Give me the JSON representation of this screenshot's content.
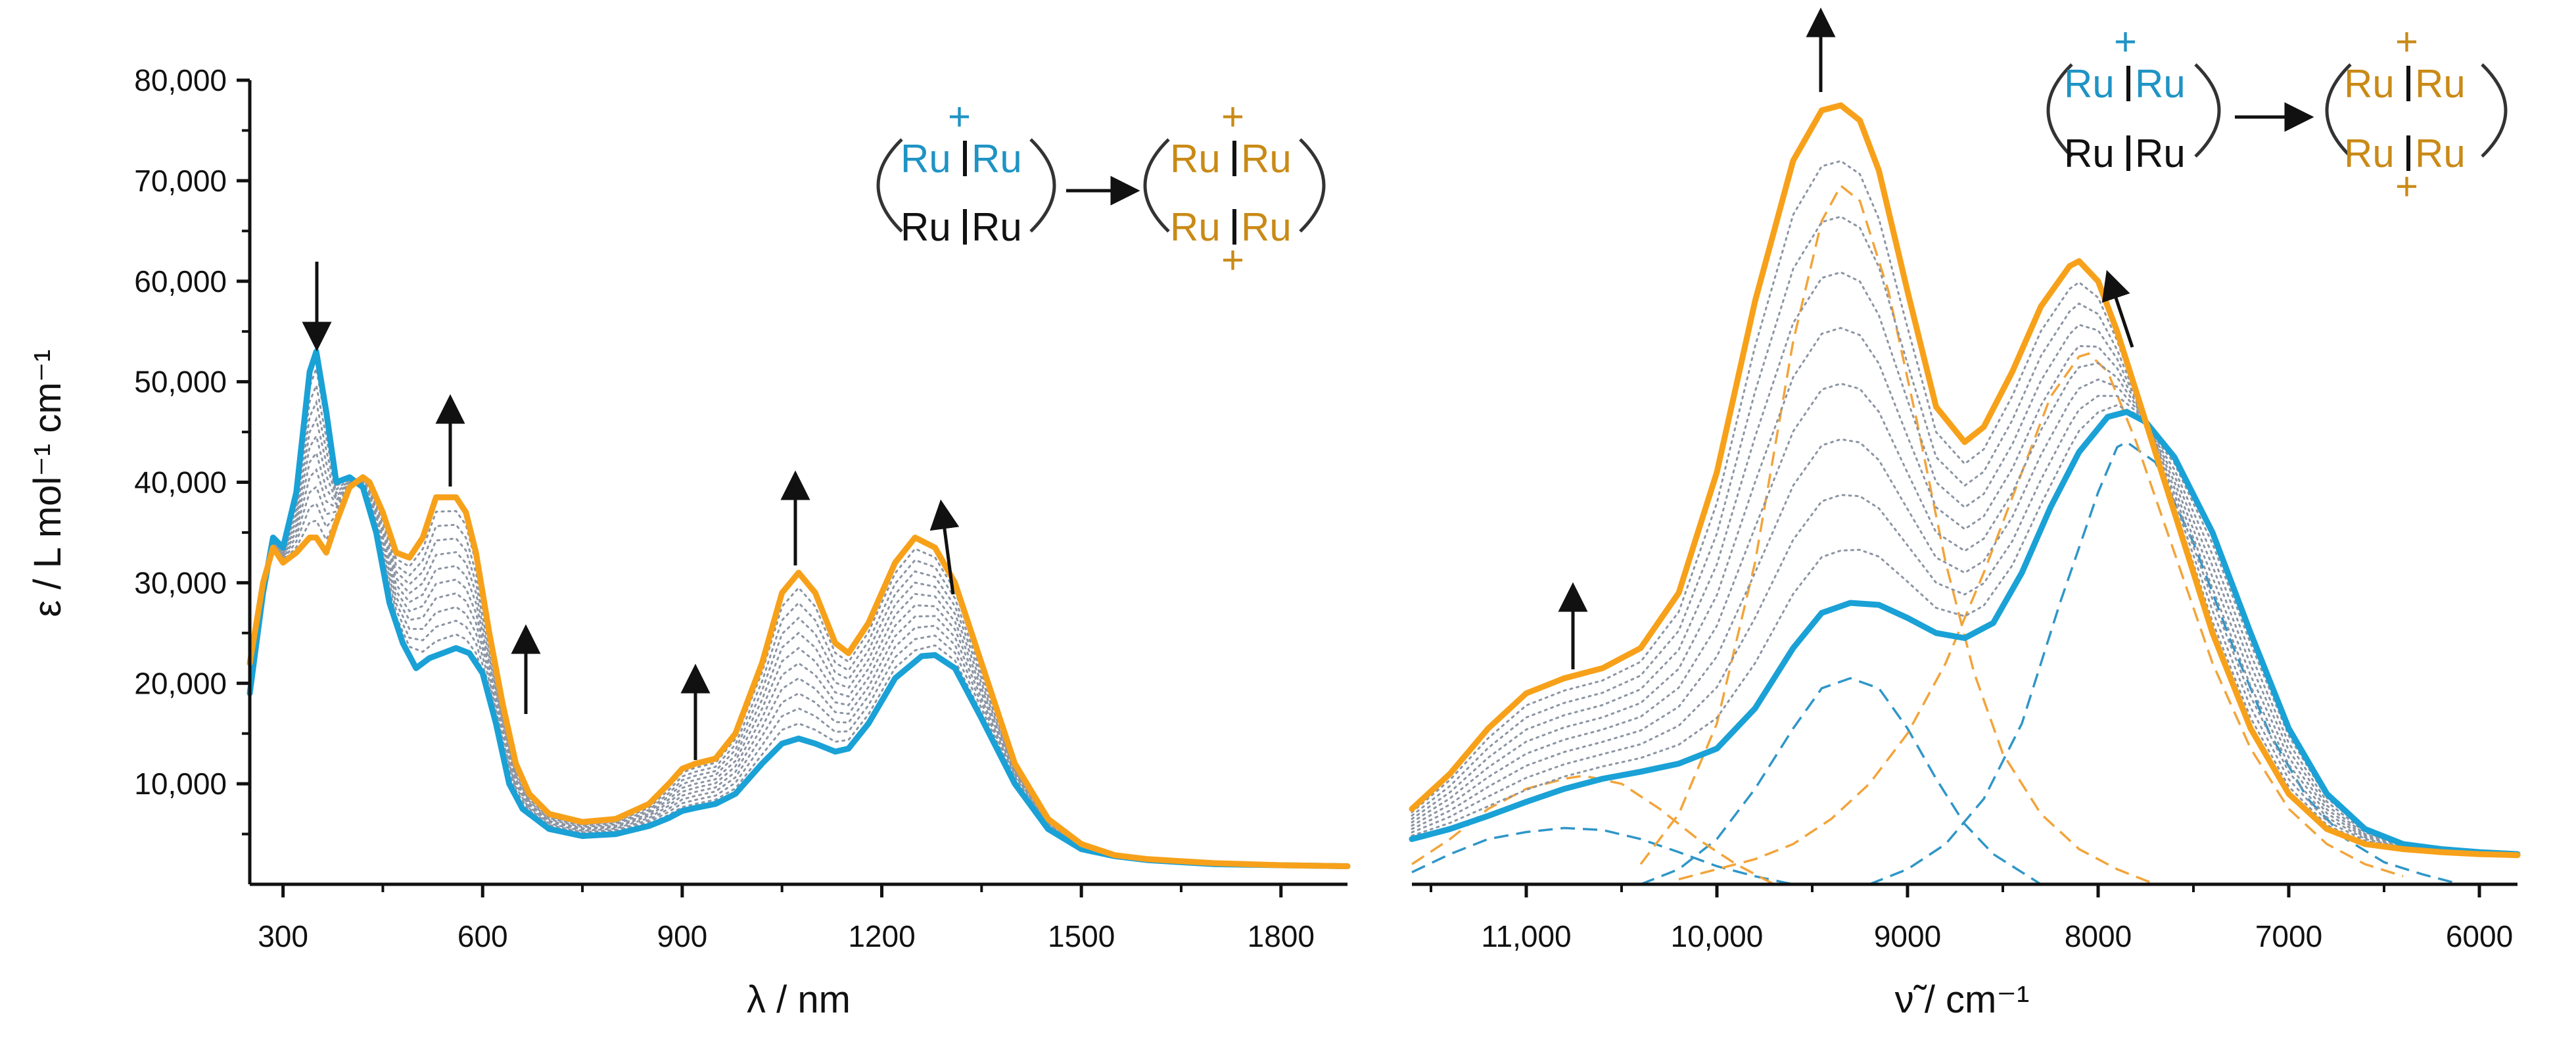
{
  "colors": {
    "blue": "#1aa1d6",
    "orange": "#f7a11a",
    "gray": "#8c95a3",
    "dblue": "#2f96c8",
    "dorange": "#f2a43a",
    "black": "#111111"
  },
  "chart_data": [
    {
      "type": "line",
      "id": "left",
      "title": "",
      "xlabel": "λ / nm",
      "ylabel": "ε / L mol⁻¹ cm⁻¹",
      "xlim": [
        250,
        1900
      ],
      "ylim": [
        0,
        80000
      ],
      "xticks": [
        300,
        600,
        900,
        1200,
        1500,
        1800
      ],
      "xtick_labels": [
        "300",
        "600",
        "900",
        "1200",
        "1500",
        "1800"
      ],
      "yticks": [
        10000,
        20000,
        30000,
        40000,
        50000,
        60000,
        70000,
        80000
      ],
      "ytick_labels": [
        "10,000",
        "20,000",
        "30,000",
        "40,000",
        "50,000",
        "60,000",
        "70,000",
        "80,000"
      ],
      "series": [
        {
          "name": "initial (blue)",
          "style": "solid-blue",
          "x": [
            250,
            270,
            285,
            300,
            320,
            340,
            350,
            365,
            380,
            400,
            420,
            440,
            460,
            480,
            500,
            520,
            540,
            560,
            580,
            600,
            620,
            640,
            660,
            680,
            700,
            750,
            800,
            850,
            880,
            900,
            920,
            950,
            980,
            1020,
            1050,
            1075,
            1100,
            1130,
            1150,
            1180,
            1220,
            1260,
            1280,
            1310,
            1350,
            1400,
            1450,
            1500,
            1550,
            1600,
            1700,
            1800,
            1900
          ],
          "y": [
            19000,
            29000,
            34500,
            33500,
            39000,
            51000,
            53000,
            47000,
            40000,
            40500,
            39500,
            35000,
            28000,
            24000,
            21500,
            22500,
            23000,
            23500,
            23000,
            21000,
            16000,
            10000,
            7500,
            6500,
            5500,
            4800,
            5000,
            5800,
            6600,
            7300,
            7600,
            8000,
            9000,
            12000,
            14000,
            14500,
            14000,
            13200,
            13500,
            16000,
            20500,
            22700,
            22800,
            21500,
            16500,
            10000,
            5500,
            3500,
            2800,
            2400,
            2000,
            1900,
            1800
          ]
        },
        {
          "name": "final (orange)",
          "style": "solid-orange",
          "x": [
            250,
            270,
            285,
            300,
            320,
            340,
            350,
            365,
            380,
            400,
            420,
            430,
            450,
            470,
            490,
            510,
            530,
            545,
            560,
            575,
            590,
            610,
            630,
            650,
            670,
            700,
            750,
            800,
            850,
            880,
            900,
            920,
            950,
            980,
            1020,
            1050,
            1075,
            1100,
            1130,
            1150,
            1180,
            1220,
            1250,
            1280,
            1310,
            1350,
            1400,
            1450,
            1500,
            1550,
            1600,
            1700,
            1800,
            1900
          ],
          "y": [
            22000,
            30000,
            33500,
            32000,
            33000,
            34500,
            34500,
            33000,
            36000,
            39500,
            40500,
            40000,
            37000,
            33000,
            32500,
            34500,
            38500,
            38500,
            38500,
            37000,
            33000,
            25000,
            18000,
            12000,
            9000,
            7000,
            6200,
            6500,
            8000,
            10000,
            11500,
            12000,
            12500,
            15000,
            22000,
            29000,
            31000,
            29000,
            24000,
            23000,
            26000,
            32000,
            34500,
            33500,
            30000,
            22000,
            12000,
            6500,
            4000,
            2900,
            2500,
            2100,
            1900,
            1800
          ]
        }
      ],
      "intermediate_traces": 10,
      "annotations": [
        {
          "type": "arrow",
          "direction": "down",
          "near_x": 350
        },
        {
          "type": "arrow",
          "direction": "up",
          "near_x": 550
        },
        {
          "type": "arrow",
          "direction": "up",
          "near_x": 665
        },
        {
          "type": "arrow",
          "direction": "up",
          "near_x": 920
        },
        {
          "type": "arrow",
          "direction": "up",
          "near_x": 1075
        },
        {
          "type": "arrow",
          "direction": "up",
          "near_x": 1310
        }
      ],
      "scheme": {
        "left_top": [
          "Ru",
          "Ru"
        ],
        "left_bottom": [
          "Ru",
          "Ru"
        ],
        "right_top": [
          "Ru",
          "Ru"
        ],
        "right_bottom": [
          "Ru",
          "Ru"
        ],
        "charge": "+"
      }
    },
    {
      "type": "line",
      "id": "right",
      "title": "",
      "xlabel": "ν̃ / cm⁻¹",
      "ylabel": "",
      "xlim": [
        11600,
        5800
      ],
      "ylim": [
        0,
        80000
      ],
      "x_reversed": true,
      "xticks": [
        11000,
        10000,
        9000,
        8000,
        7000,
        6000
      ],
      "xtick_labels": [
        "11,000",
        "10,000",
        "9000",
        "8000",
        "7000",
        "6000"
      ],
      "series": [
        {
          "name": "initial (blue)",
          "style": "solid-blue",
          "x": [
            11600,
            11400,
            11200,
            11000,
            10800,
            10600,
            10400,
            10200,
            10000,
            9800,
            9600,
            9450,
            9300,
            9150,
            9000,
            8850,
            8700,
            8550,
            8400,
            8250,
            8100,
            7950,
            7850,
            7750,
            7600,
            7400,
            7200,
            7000,
            6800,
            6600,
            6400,
            6200,
            6000,
            5800
          ],
          "y": [
            4500,
            5500,
            6800,
            8200,
            9500,
            10500,
            11200,
            12000,
            13500,
            17500,
            23500,
            27000,
            28000,
            27800,
            26500,
            25000,
            24500,
            26000,
            31000,
            37500,
            43000,
            46500,
            47000,
            46000,
            42500,
            35000,
            25000,
            15500,
            9000,
            5500,
            4000,
            3500,
            3200,
            3000
          ]
        },
        {
          "name": "final (orange)",
          "style": "solid-orange",
          "x": [
            11600,
            11400,
            11200,
            11000,
            10800,
            10600,
            10400,
            10200,
            10000,
            9800,
            9600,
            9450,
            9350,
            9250,
            9150,
            9000,
            8850,
            8700,
            8600,
            8450,
            8300,
            8150,
            8100,
            8000,
            7900,
            7800,
            7600,
            7400,
            7200,
            7000,
            6800,
            6600,
            6400,
            6200,
            6000,
            5800
          ],
          "y": [
            7500,
            11000,
            15500,
            19000,
            20500,
            21500,
            23500,
            29000,
            41000,
            58000,
            72000,
            77000,
            77500,
            76000,
            71000,
            59000,
            47500,
            44000,
            45500,
            51000,
            57500,
            61500,
            62000,
            60000,
            55000,
            49000,
            37000,
            25000,
            15500,
            9000,
            5500,
            4000,
            3500,
            3200,
            3000,
            2900
          ]
        },
        {
          "name": "blue band ~10,800",
          "style": "dashed-blue",
          "x": [
            11600,
            11400,
            11200,
            11000,
            10800,
            10600,
            10400,
            10200,
            10000,
            9800,
            9600
          ],
          "y": [
            1200,
            3000,
            4500,
            5200,
            5600,
            5400,
            4500,
            3200,
            1800,
            800,
            0
          ]
        },
        {
          "name": "blue band ~9300",
          "style": "dashed-blue",
          "x": [
            10400,
            10200,
            10000,
            9800,
            9600,
            9450,
            9300,
            9150,
            9000,
            8850,
            8700,
            8550,
            8400,
            8300
          ],
          "y": [
            0,
            1500,
            4500,
            9500,
            15500,
            19500,
            20500,
            19500,
            15500,
            10500,
            6000,
            3000,
            1200,
            0
          ]
        },
        {
          "name": "blue band ~7850",
          "style": "dashed-blue",
          "x": [
            9200,
            9000,
            8800,
            8600,
            8400,
            8200,
            8000,
            7900,
            7850,
            7700,
            7500,
            7300,
            7100,
            6900,
            6700,
            6500,
            6300,
            6100
          ],
          "y": [
            0,
            1500,
            4000,
            8500,
            16000,
            28000,
            39000,
            43500,
            44000,
            42000,
            34000,
            24000,
            15000,
            8500,
            4500,
            2200,
            1000,
            0
          ]
        },
        {
          "name": "orange band ~10,700",
          "style": "dashed-orange",
          "x": [
            11600,
            11400,
            11200,
            11000,
            10800,
            10700,
            10500,
            10300,
            10100,
            9900,
            9700
          ],
          "y": [
            2000,
            4500,
            7500,
            9500,
            10500,
            10800,
            10000,
            7500,
            4500,
            2000,
            0
          ]
        },
        {
          "name": "orange band ~9350",
          "style": "dashed-orange",
          "x": [
            10400,
            10200,
            10000,
            9800,
            9600,
            9450,
            9350,
            9250,
            9100,
            8950,
            8800,
            8650,
            8500,
            8300,
            8100,
            7900,
            7700
          ],
          "y": [
            2000,
            7000,
            16000,
            32000,
            54000,
            66000,
            69500,
            68000,
            59000,
            46000,
            32000,
            21000,
            13000,
            7000,
            3500,
            1500,
            0
          ]
        },
        {
          "name": "orange band ~8050",
          "style": "dashed-orange",
          "x": [
            10200,
            10000,
            9800,
            9600,
            9400,
            9200,
            9000,
            8800,
            8600,
            8400,
            8250,
            8100,
            8050,
            7950,
            7800,
            7600,
            7400,
            7200,
            7000,
            6800,
            6600,
            6400
          ],
          "y": [
            500,
            1500,
            2500,
            4000,
            6500,
            10000,
            15000,
            22000,
            31000,
            41000,
            48500,
            52500,
            52800,
            51000,
            44000,
            33000,
            22000,
            13500,
            7500,
            4000,
            2000,
            800
          ]
        }
      ],
      "intermediate_traces": 8,
      "annotations": [
        {
          "type": "arrow",
          "direction": "up",
          "near_x": 10650
        },
        {
          "type": "arrow",
          "direction": "up",
          "near_x": 9350
        },
        {
          "type": "arrow",
          "direction": "up-left",
          "near_x": 7900
        }
      ],
      "scheme": {
        "left_top": [
          "Ru",
          "Ru"
        ],
        "left_bottom": [
          "Ru",
          "Ru"
        ],
        "right_top": [
          "Ru",
          "Ru"
        ],
        "right_bottom": [
          "Ru",
          "Ru"
        ],
        "charge": "+"
      }
    }
  ]
}
